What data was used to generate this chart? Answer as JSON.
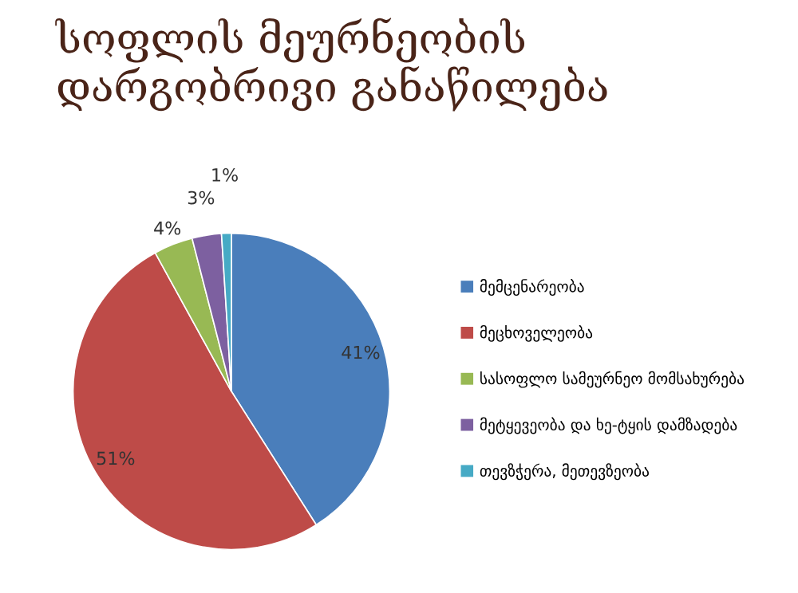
{
  "chart_data": {
    "type": "pie",
    "title": "სოფლის მეურნეობის\nდარგობრივი განაწილება",
    "categories": [
      "მემცენარეობა",
      "მეცხოველეობა",
      "სასოფლო სამეურნეო მომსახურება",
      "მეტყევეობა და ხე-ტყის დამზადება",
      "თევზჭერა, მეთევზეობა"
    ],
    "values": [
      41,
      51,
      4,
      3,
      1
    ],
    "colors": [
      "#4a7ebb",
      "#be4b48",
      "#98b954",
      "#7d60a0",
      "#46aac5"
    ],
    "value_labels": [
      "41%",
      "51%",
      "4%",
      "3%",
      "1%"
    ],
    "legend": "right"
  }
}
